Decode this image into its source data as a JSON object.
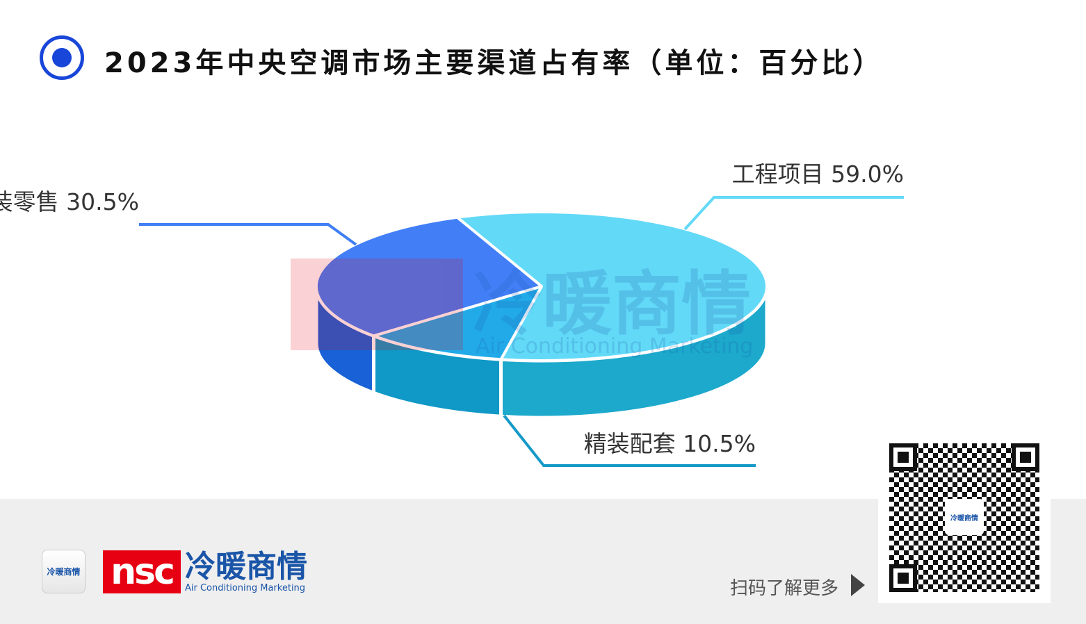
{
  "title": "2023年中央空调市场主要渠道占有率（单位：百分比）",
  "chart_data": {
    "type": "pie",
    "style": "3d",
    "title": "2023年中央空调市场主要渠道占有率（单位：百分比）",
    "slices": [
      {
        "label": "工程项目",
        "value": 59.0,
        "display": "59.0%",
        "color": "#62d9f7",
        "side_color": "#1ca9cc"
      },
      {
        "label": "精装配套",
        "value": 10.5,
        "display": "10.5%",
        "color": "#22aae8",
        "side_color": "#1098c6"
      },
      {
        "label": "家装零售",
        "value": 30.5,
        "display": "30.5%",
        "color": "#427ff7",
        "side_color": "#1861d6"
      }
    ]
  },
  "watermark": {
    "cn": "冷暖商情",
    "en": "Air Conditioning Marketing",
    "mark": "nsc"
  },
  "footer": {
    "logo_small": "冷暖商情",
    "logo_mark": "nsc",
    "logo_cn": "冷暖商情",
    "logo_en": "Air Conditioning Marketing",
    "scan_text": "扫码了解更多",
    "qr_logo": "冷暖商情"
  }
}
